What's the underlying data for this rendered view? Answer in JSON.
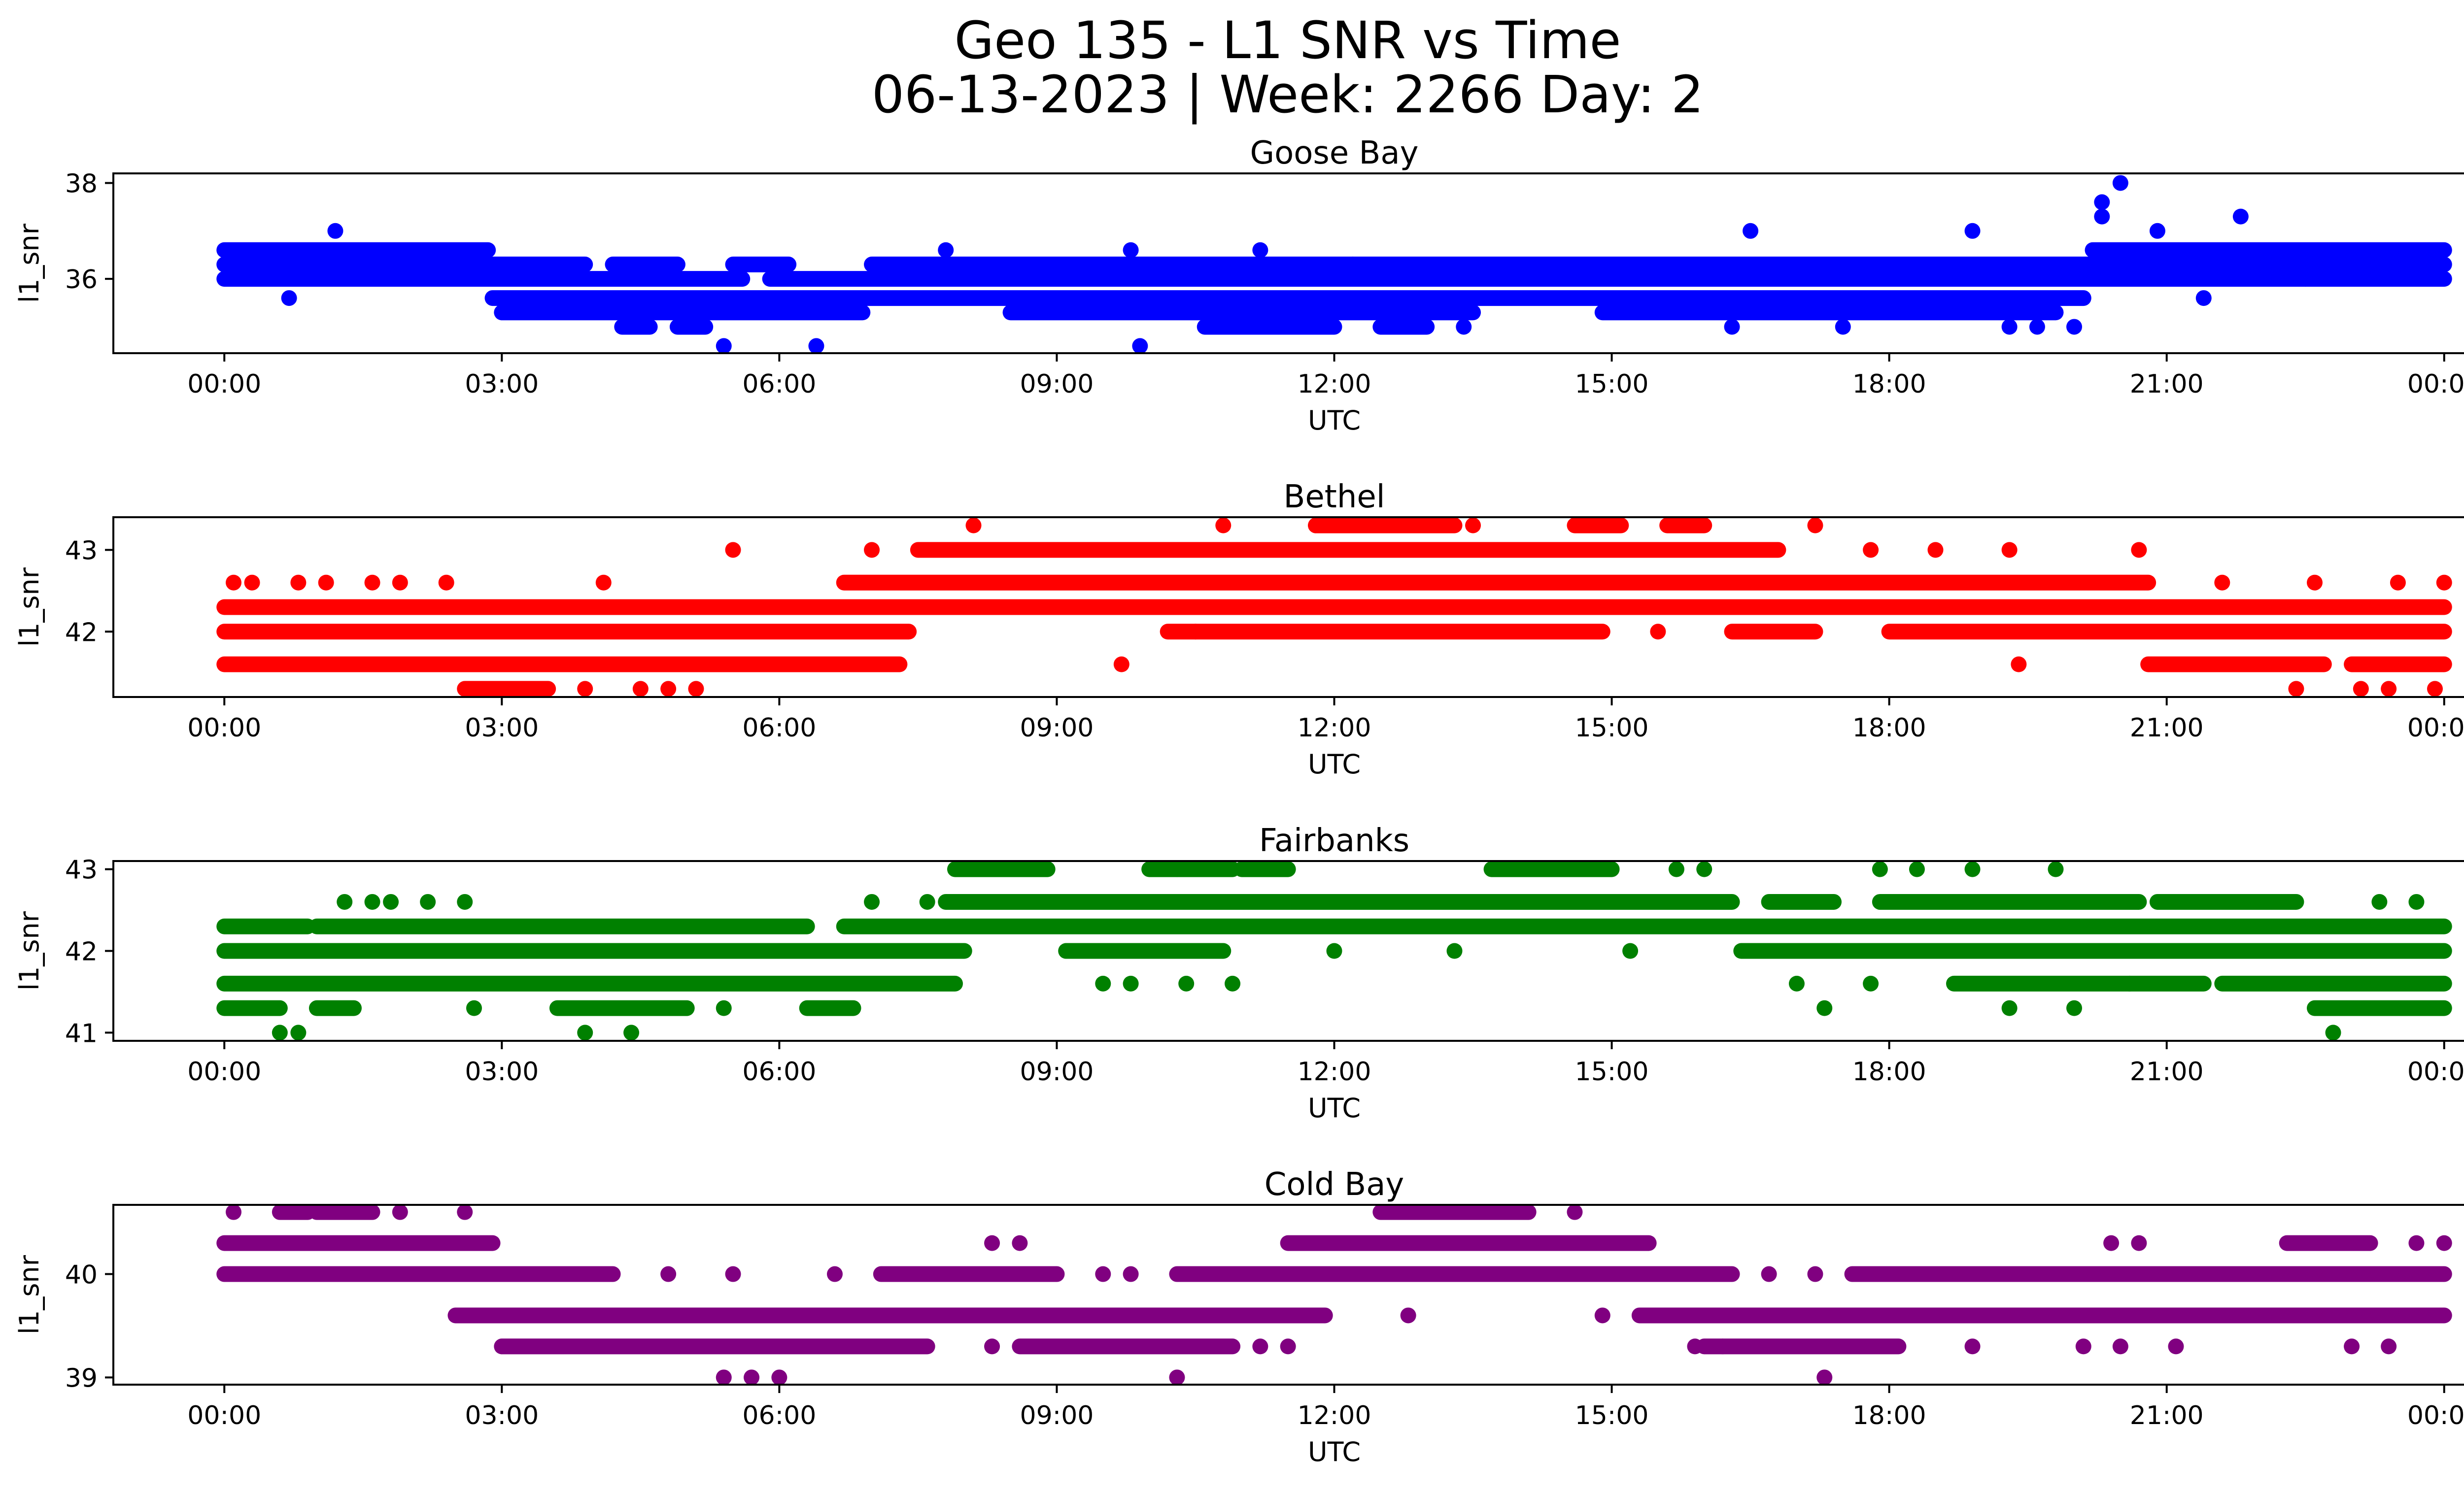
{
  "figure": {
    "title_line1": "Geo 135 - L1 SNR vs Time",
    "title_line2": "06-13-2023 | Week: 2266 Day: 2"
  },
  "chart_data": [
    {
      "type": "scatter",
      "title": "Goose Bay",
      "xlabel": "UTC",
      "ylabel": "l1_snr",
      "color": "#0000ff",
      "x_ticks": [
        "00:00",
        "03:00",
        "06:00",
        "09:00",
        "12:00",
        "15:00",
        "18:00",
        "21:00",
        "00:00"
      ],
      "x_range_hours": [
        -1.2,
        25.2
      ],
      "ylim": [
        34.45,
        38.2
      ],
      "y_ticks": [
        36,
        38
      ],
      "bands": [
        {
          "y": 36.6,
          "segments": [
            [
              0.0,
              2.85
            ],
            [
              20.2,
              24.0
            ]
          ]
        },
        {
          "y": 36.3,
          "segments": [
            [
              0.0,
              3.9
            ],
            [
              4.2,
              4.9
            ],
            [
              5.5,
              6.1
            ],
            [
              7.0,
              24.0
            ]
          ]
        },
        {
          "y": 36.0,
          "segments": [
            [
              0.0,
              5.6
            ],
            [
              5.9,
              24.0
            ]
          ]
        },
        {
          "y": 35.6,
          "segments": [
            [
              2.9,
              20.1
            ]
          ]
        },
        {
          "y": 35.3,
          "segments": [
            [
              3.0,
              6.9
            ],
            [
              8.5,
              13.5
            ],
            [
              14.9,
              19.8
            ]
          ]
        },
        {
          "y": 35.0,
          "segments": [
            [
              4.3,
              4.6
            ],
            [
              4.9,
              5.2
            ],
            [
              10.6,
              12.0
            ],
            [
              12.5,
              13.0
            ]
          ]
        }
      ],
      "points": [
        [
          1.2,
          37.0
        ],
        [
          0.7,
          35.6
        ],
        [
          20.5,
          38.0
        ],
        [
          20.3,
          37.6
        ],
        [
          21.8,
          37.3
        ],
        [
          18.9,
          37.0
        ],
        [
          16.5,
          37.0
        ],
        [
          9.8,
          36.6
        ],
        [
          12.2,
          36.3
        ],
        [
          5.4,
          34.6
        ],
        [
          6.4,
          34.6
        ],
        [
          9.9,
          34.6
        ],
        [
          17.5,
          35.0
        ],
        [
          19.3,
          35.0
        ],
        [
          19.6,
          35.0
        ],
        [
          20.0,
          35.0
        ],
        [
          21.4,
          35.6
        ],
        [
          22.5,
          36.0
        ],
        [
          13.4,
          35.0
        ],
        [
          16.3,
          35.0
        ],
        [
          20.3,
          37.3
        ],
        [
          20.9,
          37.0
        ],
        [
          11.2,
          36.6
        ],
        [
          7.8,
          36.6
        ]
      ]
    },
    {
      "type": "scatter",
      "title": "Bethel",
      "xlabel": "UTC",
      "ylabel": "l1_snr",
      "color": "#ff0000",
      "x_ticks": [
        "00:00",
        "03:00",
        "06:00",
        "09:00",
        "12:00",
        "15:00",
        "18:00",
        "21:00",
        "00:00"
      ],
      "x_range_hours": [
        -1.2,
        25.2
      ],
      "ylim": [
        41.2,
        43.4
      ],
      "y_ticks": [
        42,
        43
      ],
      "bands": [
        {
          "y": 43.3,
          "segments": [
            [
              11.8,
              13.3
            ],
            [
              14.6,
              15.1
            ],
            [
              15.6,
              16.0
            ]
          ]
        },
        {
          "y": 43.0,
          "segments": [
            [
              7.5,
              16.8
            ]
          ]
        },
        {
          "y": 42.6,
          "segments": [
            [
              6.7,
              20.8
            ]
          ]
        },
        {
          "y": 42.3,
          "segments": [
            [
              0.0,
              24.0
            ]
          ]
        },
        {
          "y": 42.0,
          "segments": [
            [
              0.0,
              7.4
            ],
            [
              10.2,
              14.9
            ],
            [
              16.3,
              17.2
            ],
            [
              18.0,
              24.0
            ]
          ]
        },
        {
          "y": 41.6,
          "segments": [
            [
              0.0,
              7.3
            ],
            [
              20.8,
              22.7
            ],
            [
              23.0,
              24.0
            ]
          ]
        },
        {
          "y": 41.3,
          "segments": [
            [
              2.6,
              3.5
            ]
          ]
        }
      ],
      "points": [
        [
          0.1,
          42.6
        ],
        [
          0.3,
          42.6
        ],
        [
          0.8,
          42.6
        ],
        [
          1.1,
          42.6
        ],
        [
          1.6,
          42.6
        ],
        [
          1.9,
          42.6
        ],
        [
          2.4,
          42.6
        ],
        [
          4.1,
          42.6
        ],
        [
          5.5,
          43.0
        ],
        [
          7.0,
          43.0
        ],
        [
          8.1,
          43.3
        ],
        [
          10.8,
          43.3
        ],
        [
          13.5,
          43.3
        ],
        [
          17.2,
          43.3
        ],
        [
          19.3,
          43.0
        ],
        [
          20.7,
          43.0
        ],
        [
          9.7,
          41.6
        ],
        [
          19.4,
          41.6
        ],
        [
          3.9,
          41.3
        ],
        [
          4.5,
          41.3
        ],
        [
          4.8,
          41.3
        ],
        [
          5.1,
          41.3
        ],
        [
          22.4,
          41.3
        ],
        [
          23.1,
          41.3
        ],
        [
          23.4,
          41.3
        ],
        [
          23.9,
          41.3
        ],
        [
          24.0,
          42.6
        ],
        [
          23.5,
          42.6
        ],
        [
          22.6,
          42.6
        ],
        [
          21.6,
          42.6
        ],
        [
          12.3,
          42.3
        ],
        [
          13.6,
          42.3
        ],
        [
          18.5,
          43.0
        ],
        [
          17.8,
          43.0
        ],
        [
          15.5,
          42.0
        ],
        [
          10.5,
          42.0
        ]
      ]
    },
    {
      "type": "scatter",
      "title": "Fairbanks",
      "xlabel": "UTC",
      "ylabel": "l1_snr",
      "color": "#008000",
      "x_ticks": [
        "00:00",
        "03:00",
        "06:00",
        "09:00",
        "12:00",
        "15:00",
        "18:00",
        "21:00",
        "00:00"
      ],
      "x_range_hours": [
        -1.2,
        25.2
      ],
      "ylim": [
        40.9,
        43.1
      ],
      "y_ticks": [
        41,
        42,
        43
      ],
      "bands": [
        {
          "y": 43.0,
          "segments": [
            [
              7.9,
              8.9
            ],
            [
              10.0,
              10.9
            ],
            [
              11.0,
              11.5
            ],
            [
              13.7,
              15.0
            ]
          ]
        },
        {
          "y": 42.6,
          "segments": [
            [
              7.8,
              16.3
            ],
            [
              16.7,
              17.4
            ],
            [
              17.9,
              20.7
            ],
            [
              20.9,
              22.4
            ]
          ]
        },
        {
          "y": 42.3,
          "segments": [
            [
              0.0,
              0.9
            ],
            [
              1.0,
              6.3
            ],
            [
              6.7,
              24.0
            ]
          ]
        },
        {
          "y": 42.0,
          "segments": [
            [
              0.0,
              8.0
            ],
            [
              9.1,
              10.8
            ],
            [
              16.4,
              24.0
            ]
          ]
        },
        {
          "y": 41.6,
          "segments": [
            [
              0.0,
              7.9
            ],
            [
              18.7,
              21.4
            ],
            [
              21.6,
              24.0
            ]
          ]
        },
        {
          "y": 41.3,
          "segments": [
            [
              0.0,
              0.6
            ],
            [
              1.0,
              1.4
            ],
            [
              3.6,
              5.0
            ],
            [
              6.3,
              6.8
            ],
            [
              22.6,
              24.0
            ]
          ]
        }
      ],
      "points": [
        [
          0.6,
          41.0
        ],
        [
          0.8,
          41.0
        ],
        [
          3.9,
          41.0
        ],
        [
          4.4,
          41.0
        ],
        [
          22.8,
          41.0
        ],
        [
          1.3,
          42.6
        ],
        [
          1.6,
          42.6
        ],
        [
          1.8,
          42.6
        ],
        [
          2.2,
          42.6
        ],
        [
          2.6,
          42.6
        ],
        [
          7.0,
          42.6
        ],
        [
          7.6,
          42.6
        ],
        [
          12.0,
          42.0
        ],
        [
          13.3,
          42.0
        ],
        [
          15.2,
          42.0
        ],
        [
          9.8,
          41.6
        ],
        [
          10.4,
          41.6
        ],
        [
          10.9,
          41.6
        ],
        [
          17.3,
          41.3
        ],
        [
          19.3,
          41.3
        ],
        [
          20.0,
          41.3
        ],
        [
          17.0,
          41.6
        ],
        [
          17.8,
          41.6
        ],
        [
          17.9,
          43.0
        ],
        [
          18.3,
          43.0
        ],
        [
          18.9,
          43.0
        ],
        [
          19.8,
          43.0
        ],
        [
          16.0,
          43.0
        ],
        [
          15.7,
          43.0
        ],
        [
          2.7,
          41.3
        ],
        [
          5.4,
          41.3
        ],
        [
          23.7,
          42.6
        ],
        [
          23.3,
          42.6
        ],
        [
          20.6,
          41.6
        ],
        [
          10.3,
          43.0
        ],
        [
          9.5,
          41.6
        ]
      ]
    },
    {
      "type": "scatter",
      "title": "Cold Bay",
      "xlabel": "UTC",
      "ylabel": "l1_snr",
      "color": "#800080",
      "x_ticks": [
        "00:00",
        "03:00",
        "06:00",
        "09:00",
        "12:00",
        "15:00",
        "18:00",
        "21:00",
        "00:00"
      ],
      "x_range_hours": [
        -1.2,
        25.2
      ],
      "ylim": [
        38.93,
        40.67
      ],
      "y_ticks": [
        39,
        40
      ],
      "bands": [
        {
          "y": 40.6,
          "segments": [
            [
              0.6,
              0.9
            ],
            [
              1.0,
              1.6
            ],
            [
              12.5,
              14.1
            ]
          ]
        },
        {
          "y": 40.3,
          "segments": [
            [
              0.0,
              2.9
            ],
            [
              11.5,
              15.4
            ],
            [
              22.3,
              23.2
            ]
          ]
        },
        {
          "y": 40.0,
          "segments": [
            [
              0.0,
              4.2
            ],
            [
              7.1,
              9.0
            ],
            [
              10.3,
              16.3
            ],
            [
              17.6,
              24.0
            ]
          ]
        },
        {
          "y": 39.6,
          "segments": [
            [
              2.5,
              11.9
            ],
            [
              15.3,
              24.0
            ]
          ]
        },
        {
          "y": 39.3,
          "segments": [
            [
              3.0,
              7.6
            ],
            [
              8.6,
              10.9
            ],
            [
              16.0,
              18.1
            ]
          ]
        }
      ],
      "points": [
        [
          0.1,
          40.6
        ],
        [
          1.9,
          40.6
        ],
        [
          2.6,
          40.6
        ],
        [
          14.6,
          40.6
        ],
        [
          4.8,
          40.0
        ],
        [
          5.5,
          40.0
        ],
        [
          6.6,
          40.0
        ],
        [
          9.5,
          40.0
        ],
        [
          9.8,
          40.0
        ],
        [
          16.7,
          40.0
        ],
        [
          17.2,
          40.0
        ],
        [
          8.3,
          40.3
        ],
        [
          8.6,
          40.3
        ],
        [
          20.4,
          40.3
        ],
        [
          20.7,
          40.3
        ],
        [
          23.7,
          40.3
        ],
        [
          24.0,
          40.3
        ],
        [
          12.8,
          39.6
        ],
        [
          14.9,
          39.6
        ],
        [
          5.4,
          39.0
        ],
        [
          5.7,
          39.0
        ],
        [
          6.0,
          39.0
        ],
        [
          10.3,
          39.0
        ],
        [
          17.3,
          39.0
        ],
        [
          8.3,
          39.3
        ],
        [
          11.2,
          39.3
        ],
        [
          11.5,
          39.3
        ],
        [
          18.9,
          39.3
        ],
        [
          20.1,
          39.3
        ],
        [
          20.5,
          39.3
        ],
        [
          21.1,
          39.3
        ],
        [
          23.0,
          39.3
        ],
        [
          23.4,
          39.3
        ],
        [
          15.9,
          39.3
        ],
        [
          16.2,
          39.3
        ]
      ]
    }
  ]
}
